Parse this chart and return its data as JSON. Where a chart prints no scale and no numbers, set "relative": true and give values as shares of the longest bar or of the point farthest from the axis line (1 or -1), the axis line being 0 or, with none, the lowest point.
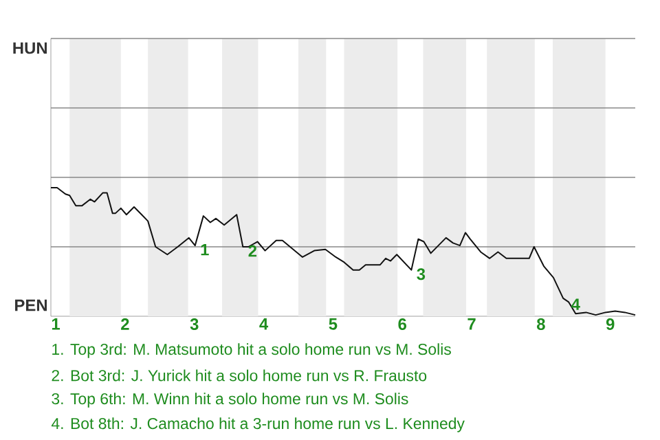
{
  "chart_data": {
    "type": "line",
    "relative": true,
    "x": [
      0.93,
      1.02,
      1.14,
      1.2,
      1.29,
      1.38,
      1.5,
      1.56,
      1.68,
      1.74,
      1.82,
      1.86,
      1.94,
      2.02,
      2.13,
      2.24,
      2.33,
      2.44,
      2.61,
      2.76,
      2.92,
      3.01,
      3.13,
      3.23,
      3.31,
      3.43,
      3.61,
      3.7,
      3.78,
      3.91,
      4.02,
      4.18,
      4.27,
      4.56,
      4.73,
      4.89,
      5.04,
      5.16,
      5.29,
      5.38,
      5.47,
      5.68,
      5.76,
      5.83,
      5.92,
      6.13,
      6.23,
      6.31,
      6.41,
      6.63,
      6.73,
      6.83,
      6.91,
      6.98,
      7.13,
      7.26,
      7.38,
      7.5,
      7.83,
      7.9,
      8.04,
      8.18,
      8.32,
      8.4,
      8.5,
      8.65,
      8.79,
      8.93,
      9.07,
      9.21,
      9.36
    ],
    "series": [
      {
        "color": "#111111",
        "values": [
          1,
          1,
          0.95,
          0.94,
          0.86,
          0.86,
          0.91,
          0.89,
          0.96,
          0.96,
          0.8,
          0.8,
          0.84,
          0.79,
          0.85,
          0.79,
          0.74,
          0.54,
          0.48,
          0.54,
          0.61,
          0.55,
          0.78,
          0.73,
          0.76,
          0.71,
          0.79,
          0.54,
          0.54,
          0.58,
          0.51,
          0.59,
          0.59,
          0.46,
          0.51,
          0.52,
          0.46,
          0.42,
          0.36,
          0.36,
          0.4,
          0.4,
          0.45,
          0.43,
          0.48,
          0.36,
          0.6,
          0.58,
          0.49,
          0.61,
          0.57,
          0.55,
          0.65,
          0.6,
          0.5,
          0.45,
          0.5,
          0.45,
          0.45,
          0.54,
          0.39,
          0.3,
          0.14,
          0.11,
          0.02,
          0.03,
          0.01,
          0.03,
          0.04,
          0.03,
          0.01
        ]
      }
    ],
    "xlim": [
      0.93,
      9.36
    ],
    "xticks": [
      1,
      2,
      3,
      4,
      5,
      6,
      7,
      8,
      9
    ],
    "ref_lines": [
      {
        "axis": "y",
        "value": 0.54,
        "color": "#888888"
      },
      {
        "axis": "y",
        "value": 1.08,
        "color": "#888888"
      },
      {
        "axis": "y",
        "value": 1.62,
        "color": "#888888"
      },
      {
        "axis": "y",
        "value": 2.16,
        "color": "#888888"
      }
    ],
    "bands": [
      {
        "axis": "x",
        "from": 1.2,
        "to": 1.94,
        "color": "#ececec"
      },
      {
        "axis": "x",
        "from": 2.33,
        "to": 2.91,
        "color": "#ececec"
      },
      {
        "axis": "x",
        "from": 3.4,
        "to": 3.92,
        "color": "#ececec"
      },
      {
        "axis": "x",
        "from": 4.5,
        "to": 4.9,
        "color": "#ececec"
      },
      {
        "axis": "x",
        "from": 5.16,
        "to": 5.93,
        "color": "#ececec"
      },
      {
        "axis": "x",
        "from": 6.3,
        "to": 6.92,
        "color": "#ececec"
      },
      {
        "axis": "x",
        "from": 7.22,
        "to": 7.91,
        "color": "#ececec"
      },
      {
        "axis": "x",
        "from": 8.17,
        "to": 8.93,
        "color": "#ececec"
      }
    ],
    "annotations": [
      {
        "text": "1",
        "x": 3.01,
        "y": 0.55
      },
      {
        "text": "2",
        "x": 3.7,
        "y": 0.54
      },
      {
        "text": "3",
        "x": 6.13,
        "y": 0.36
      },
      {
        "text": "4",
        "x": 8.5,
        "y": 0.02
      },
      "HUN",
      "PEN",
      "1. Top 3rd: M. Matsumoto hit a solo home run vs M. Solis",
      "2. Bot 3rd: J. Yurick hit a solo home run vs R. Frausto",
      "3. Top 6th: M. Winn hit a solo home run vs M. Solis",
      "4. Bot 8th: J. Camacho hit a 3-run home run vs L. Kennedy"
    ]
  }
}
